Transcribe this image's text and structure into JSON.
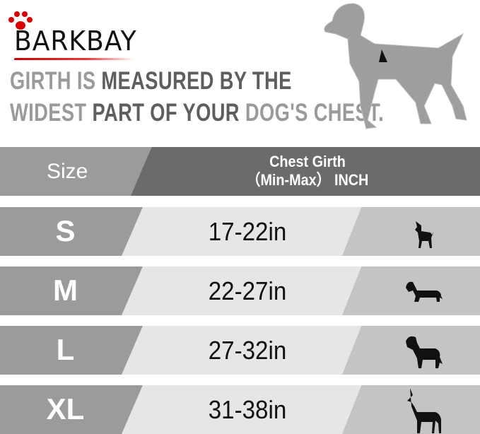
{
  "brand": {
    "name": "BARKBAY",
    "accent": "#cc0000"
  },
  "headline": {
    "line1": [
      {
        "text": "GIRTH IS ",
        "tone": "light"
      },
      {
        "text": "MEASURED BY THE",
        "tone": "dark"
      }
    ],
    "line2": [
      {
        "text": "WIDEST ",
        "tone": "light"
      },
      {
        "text": "PART OF YOUR ",
        "tone": "dark"
      },
      {
        "text": "DOG'S CHEST.",
        "tone": "light"
      }
    ]
  },
  "table": {
    "header": {
      "size": "Size",
      "girth_line1": "Chest Girth",
      "girth_line2": "（Min-Max） INCH"
    },
    "rows": [
      {
        "size": "S",
        "range": "17-22in",
        "icon": "chihuahua-icon"
      },
      {
        "size": "M",
        "range": "22-27in",
        "icon": "dachshund-icon"
      },
      {
        "size": "L",
        "range": "27-32in",
        "icon": "labrador-icon"
      },
      {
        "size": "XL",
        "range": "31-38in",
        "icon": "great-dane-icon"
      }
    ]
  }
}
